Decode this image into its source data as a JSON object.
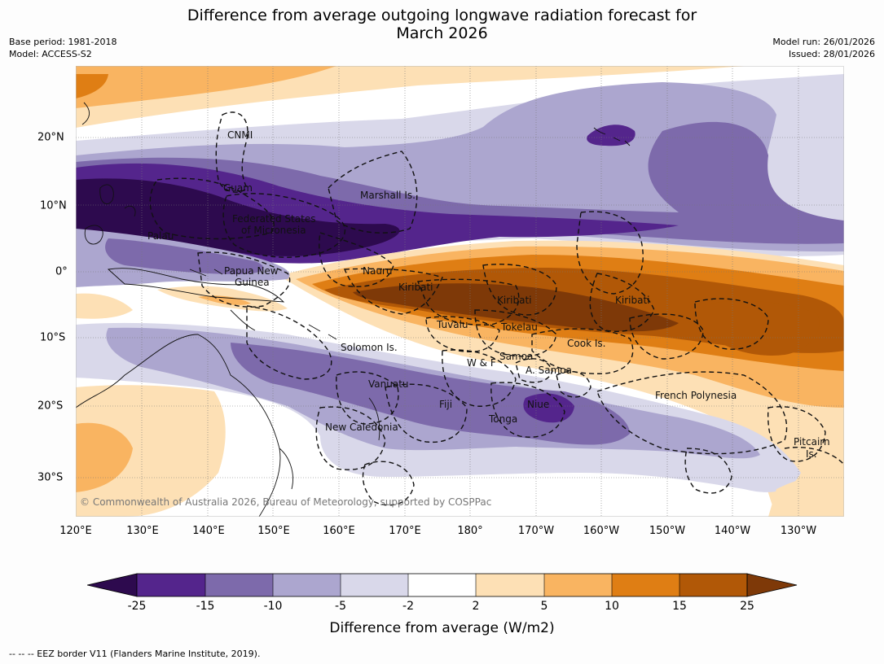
{
  "title": {
    "line1": "Difference from average outgoing longwave radiation forecast for",
    "line2": "March 2026"
  },
  "meta": {
    "base_period": "Base period: 1981-2018",
    "model": "Model: ACCESS-S2",
    "model_run": "Model run: 26/01/2026",
    "issued": "Issued: 28/01/2026"
  },
  "axes": {
    "lon_ticks": [
      "120°E",
      "130°E",
      "140°E",
      "150°E",
      "160°E",
      "170°E",
      "180°",
      "170°W",
      "160°W",
      "150°W",
      "140°W",
      "130°W"
    ],
    "lat_ticks": [
      "20°N",
      "10°N",
      "0°",
      "10°S",
      "20°S",
      "30°S"
    ]
  },
  "map_labels": [
    "CNMI",
    "Guam",
    "Marshall Is.",
    "Federated States",
    "of Micronesia",
    "Palau",
    "Papua New",
    "Guinea",
    "Nauru",
    "Kiribati",
    "Kiribati",
    "Kiribati",
    "Tuvalu",
    "Tokelau",
    "Cook Is.",
    "Solomon Is.",
    "Samoa",
    "W & F",
    "A. Samoa",
    "Vanuatu",
    "Fiji",
    "Niue",
    "Tonga",
    "French Polynesia",
    "New Caledonia",
    "Pitcairn",
    "Is."
  ],
  "copyright": "© Commonwealth of Australia 2026, Bureau of Meteorology, supported by COSPPac",
  "colorbar": {
    "levels": [
      "-25",
      "-15",
      "-10",
      "-5",
      "-2",
      "2",
      "5",
      "10",
      "15",
      "25"
    ],
    "colors": {
      "below_min": "#2d0a4e",
      "c_m25_m15": "#54258c",
      "c_m15_m10": "#7d6aab",
      "c_m10_m5": "#aca6cf",
      "c_m5_m2": "#d9d8ea",
      "c_m2_2": "#ffffff",
      "c_2_5": "#fde0b5",
      "c_5_10": "#f9b461",
      "c_10_15": "#df7e14",
      "c_15_25": "#b15807",
      "above_max": "#7e3908"
    },
    "label": "Difference from average (W/m2)"
  },
  "footnote": "-- -- -- EEZ border V11 (Flanders Marine Institute, 2019)."
}
